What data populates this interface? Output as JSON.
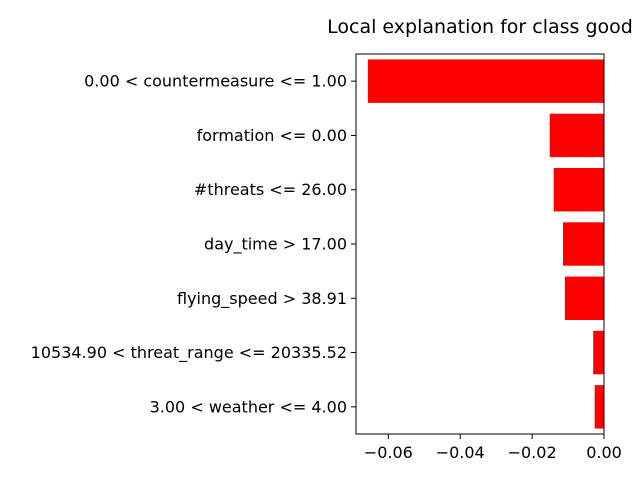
{
  "chart_data": {
    "type": "bar",
    "orientation": "horizontal",
    "title": "Local explanation for class good",
    "xlabel": "",
    "ylabel": "",
    "categories": [
      "0.00 < countermeasure <= 1.00",
      "formation <= 0.00",
      "#threats <= 26.00",
      "day_time > 17.00",
      "flying_speed > 38.91",
      "10534.90 < threat_range <= 20335.52",
      "3.00 < weather <= 4.00"
    ],
    "values": [
      -0.0657,
      -0.0151,
      -0.014,
      -0.0114,
      -0.0109,
      -0.003,
      -0.0026
    ],
    "xlim": [
      -0.069,
      0.0
    ],
    "xticks": [
      -0.06,
      -0.04,
      -0.02,
      0.0
    ],
    "xtick_labels": [
      "−0.06",
      "−0.04",
      "−0.02",
      "0.00"
    ],
    "bar_color": "#ff0000",
    "grid": false,
    "legend": "none"
  }
}
